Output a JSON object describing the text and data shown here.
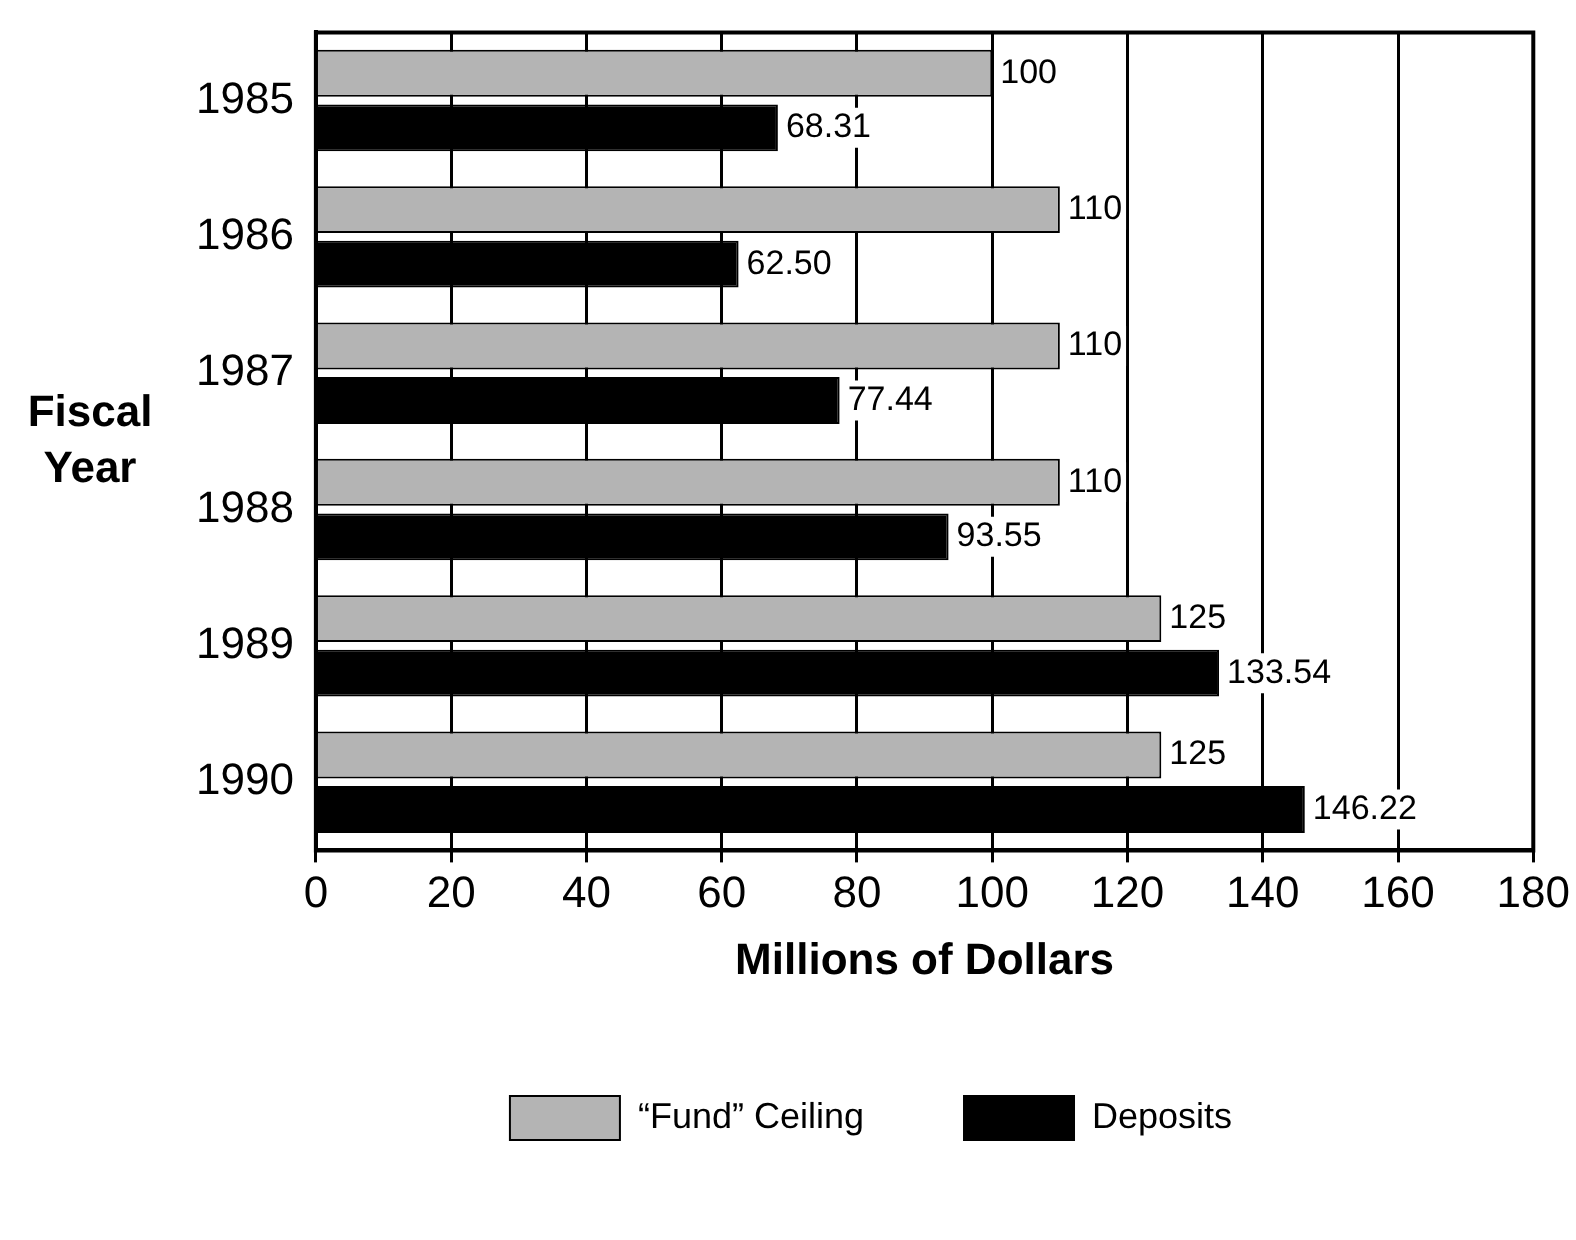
{
  "chart_data": {
    "type": "bar",
    "orientation": "horizontal",
    "xlabel": "Millions of Dollars",
    "ylabel": "Fiscal Year",
    "categories": [
      "1985",
      "1986",
      "1987",
      "1988",
      "1989",
      "1990"
    ],
    "series": [
      {
        "name": "“Fund” Ceiling",
        "color": "#b4b4b4",
        "values": [
          100,
          110,
          110,
          110,
          125,
          125
        ],
        "value_labels": [
          "100",
          "110",
          "110",
          "110",
          "125",
          "125"
        ]
      },
      {
        "name": "Deposits",
        "color": "#000000",
        "values": [
          68.31,
          62.5,
          77.44,
          93.55,
          133.54,
          146.22
        ],
        "value_labels": [
          "68.31",
          "62.50",
          "77.44",
          "93.55",
          "133.54",
          "146.22"
        ]
      }
    ],
    "xlim": [
      0,
      180
    ],
    "xticks": [
      0,
      20,
      40,
      60,
      80,
      100,
      120,
      140,
      160,
      180
    ],
    "grid": "x",
    "legend": "bottom"
  }
}
